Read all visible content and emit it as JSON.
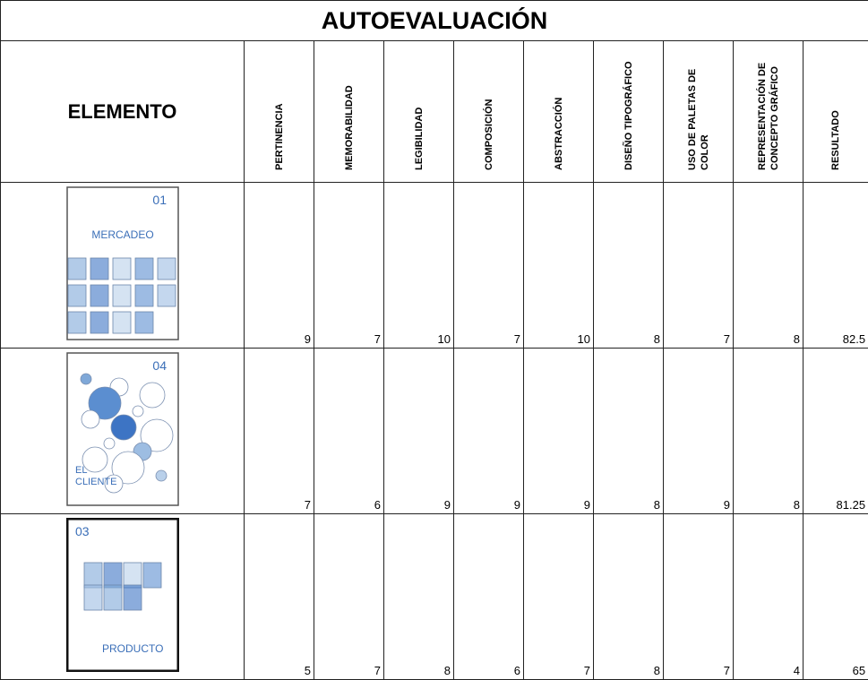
{
  "title": "AUTOEVALUACIÓN",
  "header": {
    "element": "ELEMENTO",
    "criteria": [
      "PERTINENCIA",
      "MEMORABILIDAD",
      "LEGIBILIDAD",
      "COMPOSICIÓN",
      "ABSTRACCIÓN",
      "DISEÑO TIPOGRÁFICO",
      "USO DE PALETAS DE COLOR",
      "REPRESENTACIÓN DE CONCEPTO GRÁFICO"
    ],
    "result": "RESULTADO"
  },
  "rows": [
    {
      "poster": {
        "number": "01",
        "title": [
          "MERCADEO"
        ]
      },
      "scores": [
        9,
        7,
        10,
        7,
        10,
        8,
        7,
        8
      ],
      "result": 82.5
    },
    {
      "poster": {
        "number": "04",
        "title": [
          "EL",
          "CLIENTE"
        ]
      },
      "scores": [
        7,
        6,
        9,
        9,
        9,
        8,
        9,
        8
      ],
      "result": 81.25
    },
    {
      "poster": {
        "number": "03",
        "title": [
          "PRODUCTO"
        ]
      },
      "scores": [
        5,
        7,
        8,
        6,
        7,
        8,
        7,
        4
      ],
      "result": 65
    }
  ]
}
